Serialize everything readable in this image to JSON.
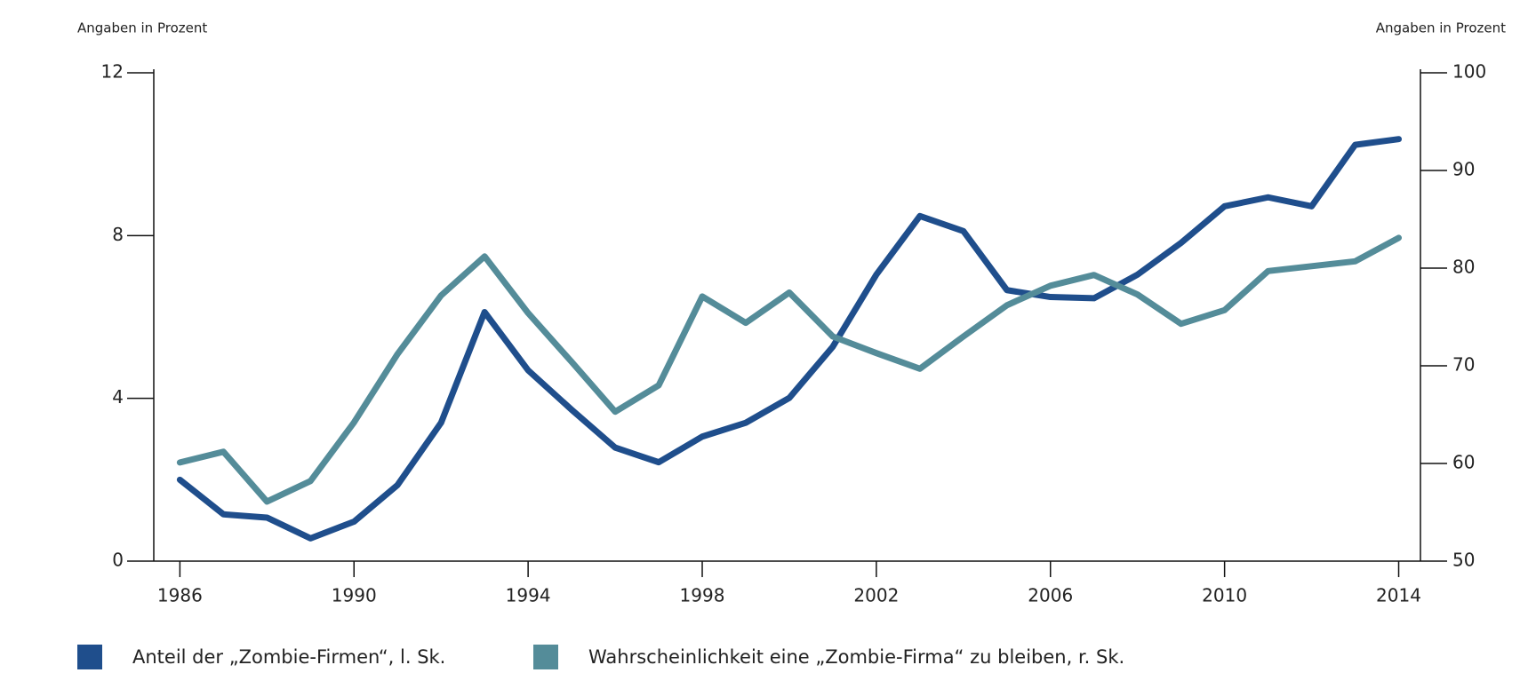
{
  "chart_data": {
    "type": "line",
    "y_label": "Angaben in Prozent",
    "y2_label": "Angaben in Prozent",
    "x": [
      1986,
      1987,
      1988,
      1989,
      1990,
      1991,
      1992,
      1993,
      1994,
      1995,
      1996,
      1997,
      1998,
      1999,
      2000,
      2001,
      2002,
      2003,
      2004,
      2005,
      2006,
      2007,
      2008,
      2009,
      2010,
      2011,
      2012,
      2013,
      2014
    ],
    "xlim": [
      1985.4,
      2014.5
    ],
    "xticks": [
      1986,
      1990,
      1994,
      1998,
      2002,
      2006,
      2010,
      2014
    ],
    "ylim": [
      0,
      12
    ],
    "yticks": [
      0,
      4,
      8,
      12
    ],
    "y2lim": [
      50,
      100
    ],
    "y2ticks": [
      50,
      60,
      70,
      80,
      90,
      100
    ],
    "series": [
      {
        "name": "Anteil der „Zombie-Firmen“, l. Sk.",
        "color": "#1f4e8c",
        "values": [
          2.0,
          1.15,
          1.07,
          0.56,
          0.97,
          1.87,
          3.4,
          6.12,
          4.69,
          3.72,
          2.79,
          2.43,
          3.06,
          3.4,
          4.01,
          5.27,
          7.04,
          8.48,
          8.11,
          6.66,
          6.49,
          6.46,
          7.04,
          7.82,
          8.72,
          8.94,
          8.72,
          10.23,
          10.37
        ]
      },
      {
        "name": "Wahrscheinlichkeit eine „Zombie-Firma“ zu bleiben, r. Sk.",
        "color": "#548c99",
        "axis": "y2",
        "values": [
          60.1,
          61.2,
          56.1,
          58.2,
          64.2,
          71.2,
          77.2,
          81.2,
          75.4,
          70.4,
          65.3,
          68.0,
          77.1,
          74.4,
          77.5,
          73.0,
          71.3,
          69.7,
          73.0,
          76.2,
          78.2,
          79.3,
          77.3,
          74.3,
          75.7,
          79.7,
          80.2,
          80.7,
          83.1
        ]
      }
    ]
  }
}
